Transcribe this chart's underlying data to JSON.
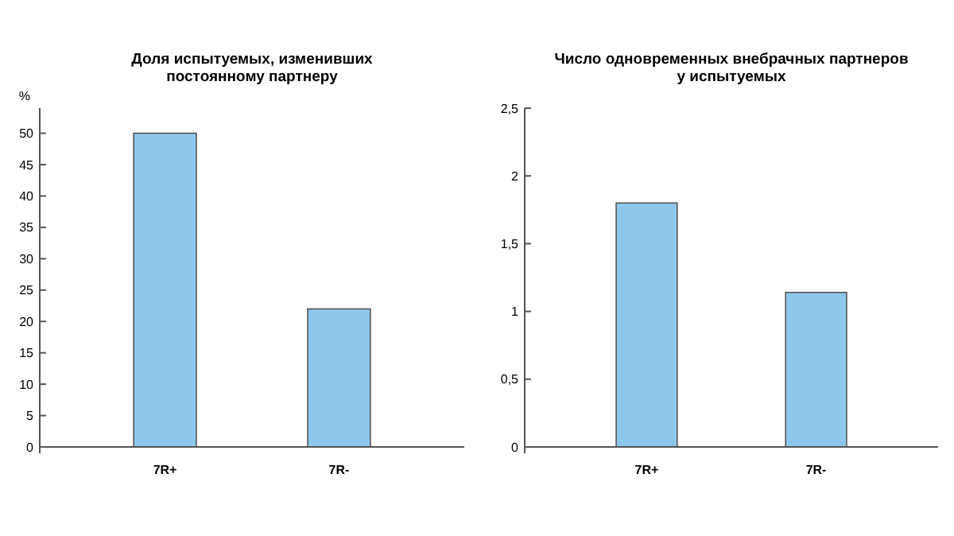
{
  "chart_data": [
    {
      "type": "bar",
      "title": "Доля испытуемых, изменивших\nпостоянному партнеру",
      "ylabel": "%",
      "categories": [
        "7R+",
        "7R-"
      ],
      "values": [
        50,
        22
      ],
      "color": "#8dc8ec",
      "ylim": [
        0,
        54
      ],
      "yticks": [
        0,
        5,
        10,
        15,
        20,
        25,
        30,
        35,
        40,
        45,
        50
      ],
      "grid": false
    },
    {
      "type": "bar",
      "title": "Число одновременных внебрачных партнеров\nу испытуемых",
      "categories": [
        "7R+",
        "7R-"
      ],
      "values": [
        1.8,
        1.14
      ],
      "color": "#8dc8ec",
      "ylim": [
        0,
        2.5
      ],
      "yticks": [
        0,
        {
          "value": 0.5,
          "label": "0,5"
        },
        1,
        {
          "value": 1.5,
          "label": "1,5"
        },
        2,
        {
          "value": 2.5,
          "label": "2,5"
        }
      ],
      "grid": false
    }
  ]
}
